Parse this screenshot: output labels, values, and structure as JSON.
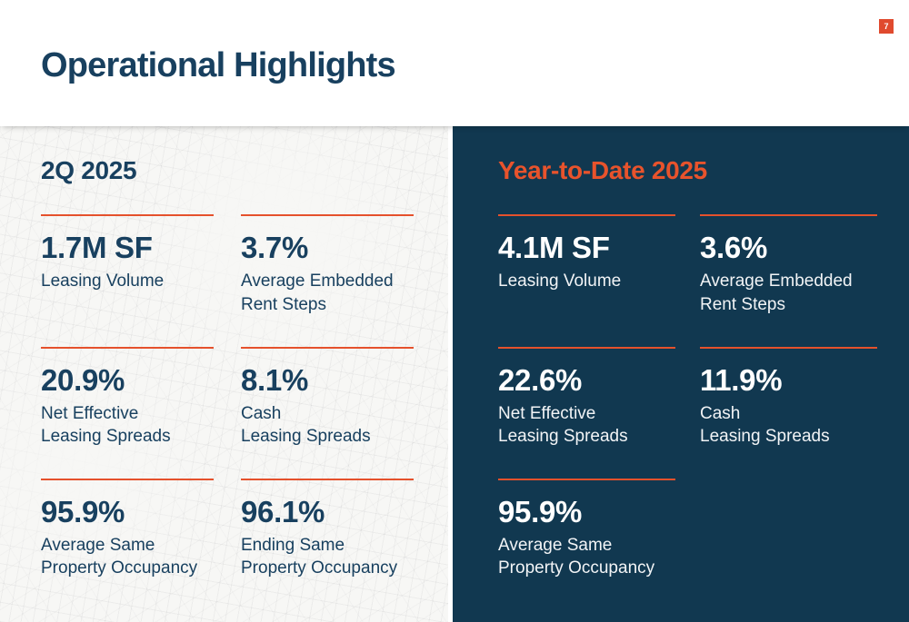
{
  "page": {
    "number": "7",
    "title": "Operational Highlights"
  },
  "colors": {
    "navy_text": "#18405F",
    "panel_dark_bg": "#113850",
    "panel_light_bg": "#F7F7F5",
    "accent_orange": "#E5512C",
    "badge_orange": "#E04A2E",
    "white": "#FFFFFF"
  },
  "panels": [
    {
      "id": "q2-2025",
      "heading": "2Q 2025",
      "theme": "light",
      "stats": [
        {
          "value": "1.7M SF",
          "label": "Leasing Volume"
        },
        {
          "value": "3.7%",
          "label": "Average Embedded\nRent Steps"
        },
        {
          "value": "20.9%",
          "label": "Net Effective\nLeasing Spreads"
        },
        {
          "value": "8.1%",
          "label": "Cash\nLeasing Spreads"
        },
        {
          "value": "95.9%",
          "label": "Average Same\nProperty Occupancy"
        },
        {
          "value": "96.1%",
          "label": "Ending Same\nProperty Occupancy"
        }
      ]
    },
    {
      "id": "ytd-2025",
      "heading": "Year-to-Date 2025",
      "theme": "dark",
      "stats": [
        {
          "value": "4.1M SF",
          "label": "Leasing Volume"
        },
        {
          "value": "3.6%",
          "label": "Average Embedded\nRent Steps"
        },
        {
          "value": "22.6%",
          "label": "Net Effective\nLeasing Spreads"
        },
        {
          "value": "11.9%",
          "label": "Cash\nLeasing Spreads"
        },
        {
          "value": "95.9%",
          "label": "Average Same\nProperty Occupancy"
        }
      ]
    }
  ]
}
